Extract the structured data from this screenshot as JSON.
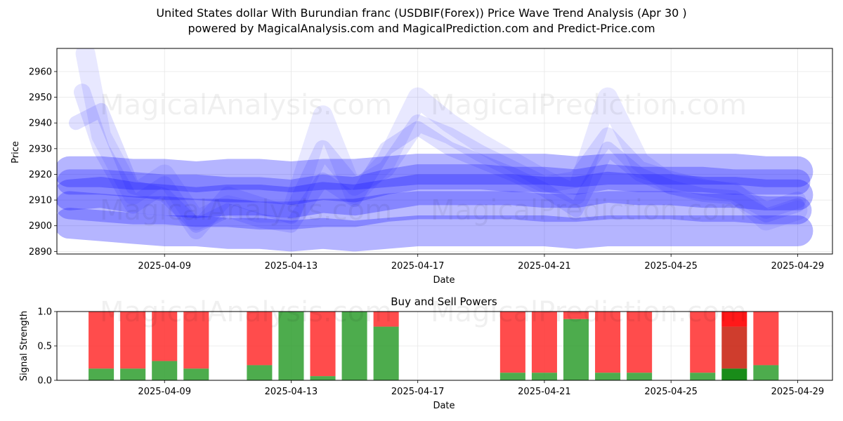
{
  "title": "United States dollar With Burundian franc (USDBIF(Forex)) Price Wave Trend Analysis (Apr 30 )",
  "subtitle": "powered by MagicalAnalysis.com and MagicalPrediction.com and Predict-Price.com",
  "watermarks": [
    "MagicalAnalysis.com",
    "MagicalPrediction.com"
  ],
  "colors": {
    "wave": "#1a1aff",
    "buy": "#2e9e2e",
    "sell": "#ff3333",
    "buy_strong": "#008000",
    "sell_strong": "#ff0000",
    "mixed": "#cc3322"
  },
  "chart_data": [
    {
      "type": "line",
      "name": "price-wave",
      "xlabel": "Date",
      "ylabel": "Price",
      "ylim": [
        2889,
        2969
      ],
      "yticks": [
        2890,
        2900,
        2910,
        2920,
        2930,
        2940,
        2950,
        2960
      ],
      "xtick_labels": [
        "2025-04-09",
        "2025-04-13",
        "2025-04-17",
        "2025-04-21",
        "2025-04-25",
        "2025-04-29"
      ],
      "xtick_days": [
        9,
        13,
        17,
        21,
        25,
        29
      ],
      "xlim_days": [
        5.6,
        30.1
      ],
      "grid": true,
      "series": [
        {
          "x": [
            6,
            7,
            8,
            9,
            10,
            11,
            12,
            13,
            14,
            15,
            16,
            17,
            18,
            19,
            20,
            21,
            22,
            23,
            24,
            25,
            26,
            27,
            28,
            29
          ],
          "y": [
            2912,
            2913,
            2911,
            2910,
            2909,
            2910,
            2910,
            2909,
            2911,
            2910,
            2912,
            2914,
            2914,
            2914,
            2914,
            2913,
            2913,
            2915,
            2914,
            2914,
            2913,
            2913,
            2912,
            2912
          ]
        },
        {
          "x": [
            6,
            7,
            8,
            9,
            10,
            11,
            12,
            13,
            14,
            15,
            16,
            17,
            18,
            19,
            20,
            21,
            22,
            23,
            24,
            25,
            26,
            27,
            28,
            29
          ],
          "y": [
            2901,
            2900,
            2899,
            2898,
            2898,
            2897,
            2897,
            2896,
            2897,
            2896,
            2897,
            2898,
            2898,
            2898,
            2898,
            2898,
            2897,
            2898,
            2898,
            2898,
            2898,
            2898,
            2898,
            2898
          ]
        },
        {
          "x": [
            6,
            7,
            8,
            9,
            10,
            11,
            12,
            13,
            14,
            15,
            16,
            17,
            18,
            19,
            20,
            21,
            22,
            23,
            24,
            25,
            26,
            27,
            28,
            29
          ],
          "y": [
            2921,
            2921,
            2920,
            2920,
            2919,
            2920,
            2920,
            2919,
            2920,
            2920,
            2921,
            2922,
            2922,
            2922,
            2922,
            2922,
            2921,
            2922,
            2922,
            2922,
            2922,
            2922,
            2921,
            2921
          ]
        },
        {
          "x": [
            6,
            7,
            8,
            9,
            10,
            11,
            12,
            13,
            14,
            15,
            16,
            17,
            18,
            19,
            20,
            21,
            22,
            23,
            24,
            25,
            26,
            27,
            28,
            29
          ],
          "y": [
            2908,
            2907,
            2906,
            2906,
            2905,
            2905,
            2904,
            2904,
            2905,
            2905,
            2907,
            2908,
            2908,
            2908,
            2908,
            2907,
            2907,
            2908,
            2908,
            2908,
            2907,
            2907,
            2906,
            2906
          ]
        },
        {
          "x": [
            6,
            7,
            8,
            9,
            10,
            11,
            12,
            13,
            14,
            15,
            16,
            17,
            18,
            19,
            20,
            21,
            22,
            23,
            24,
            25,
            26,
            27,
            28,
            29
          ],
          "y": [
            2917,
            2917,
            2916,
            2915,
            2915,
            2914,
            2914,
            2913,
            2915,
            2914,
            2917,
            2919,
            2919,
            2919,
            2918,
            2918,
            2917,
            2919,
            2918,
            2918,
            2918,
            2917,
            2917,
            2917
          ]
        },
        {
          "x": [
            6.5,
            7,
            8,
            9,
            10,
            11,
            12,
            13,
            14,
            15,
            16,
            17,
            18,
            19,
            20,
            21,
            22,
            23,
            24,
            25,
            26,
            27,
            28,
            29
          ],
          "y": [
            2967,
            2935,
            2912,
            2920,
            2902,
            2908,
            2905,
            2905,
            2943,
            2912,
            2925,
            2950,
            2940,
            2932,
            2925,
            2918,
            2912,
            2950,
            2925,
            2916,
            2914,
            2913,
            2902,
            2906
          ]
        },
        {
          "x": [
            6.4,
            7,
            8,
            9,
            10,
            11,
            12,
            13,
            14,
            15,
            16,
            17,
            18,
            19,
            20,
            21,
            22,
            23,
            24,
            25,
            26,
            27,
            28,
            29
          ],
          "y": [
            2952,
            2930,
            2908,
            2916,
            2898,
            2912,
            2908,
            2904,
            2930,
            2915,
            2922,
            2940,
            2935,
            2928,
            2922,
            2916,
            2918,
            2935,
            2922,
            2918,
            2915,
            2913,
            2906,
            2910
          ]
        },
        {
          "x": [
            6.2,
            7,
            8,
            9,
            10,
            11,
            12,
            13,
            14,
            15,
            16,
            17,
            18,
            19,
            20,
            21,
            22,
            23,
            24,
            25,
            26,
            27,
            28,
            29
          ],
          "y": [
            2940,
            2945,
            2915,
            2912,
            2900,
            2906,
            2902,
            2900,
            2918,
            2910,
            2930,
            2938,
            2930,
            2925,
            2920,
            2914,
            2906,
            2930,
            2920,
            2915,
            2912,
            2911,
            2904,
            2908
          ]
        }
      ]
    },
    {
      "type": "bar",
      "name": "buy-sell-powers",
      "title": "Buy and Sell Powers",
      "xlabel": "Date",
      "ylabel": "Signal Strength",
      "ylim": [
        0,
        1.0
      ],
      "yticks": [
        0.0,
        0.5,
        1.0
      ],
      "ytick_labels": [
        "0.0",
        "0.5",
        "1.0"
      ],
      "xtick_labels": [
        "2025-04-09",
        "2025-04-13",
        "2025-04-17",
        "2025-04-21",
        "2025-04-25",
        "2025-04-29"
      ],
      "xtick_days": [
        9,
        13,
        17,
        21,
        25,
        29
      ],
      "xlim_days": [
        5.6,
        30.1
      ],
      "bars": [
        {
          "day": 7,
          "buy": 0.17
        },
        {
          "day": 8,
          "buy": 0.17
        },
        {
          "day": 9,
          "buy": 0.28
        },
        {
          "day": 10,
          "buy": 0.17
        },
        {
          "day": 12,
          "buy": 0.22
        },
        {
          "day": 13,
          "buy": 1.0
        },
        {
          "day": 14,
          "buy": 0.06
        },
        {
          "day": 15,
          "buy": 1.0
        },
        {
          "day": 16,
          "buy": 0.78
        },
        {
          "day": 20,
          "buy": 0.11
        },
        {
          "day": 21,
          "buy": 0.11
        },
        {
          "day": 22,
          "buy": 0.89
        },
        {
          "day": 23,
          "buy": 0.11
        },
        {
          "day": 24,
          "buy": 0.11
        },
        {
          "day": 26,
          "buy": 0.11
        },
        {
          "day": 27,
          "buy": 0.17,
          "mixed": 0.61,
          "strong": true
        },
        {
          "day": 28,
          "buy": 0.22
        }
      ]
    }
  ]
}
